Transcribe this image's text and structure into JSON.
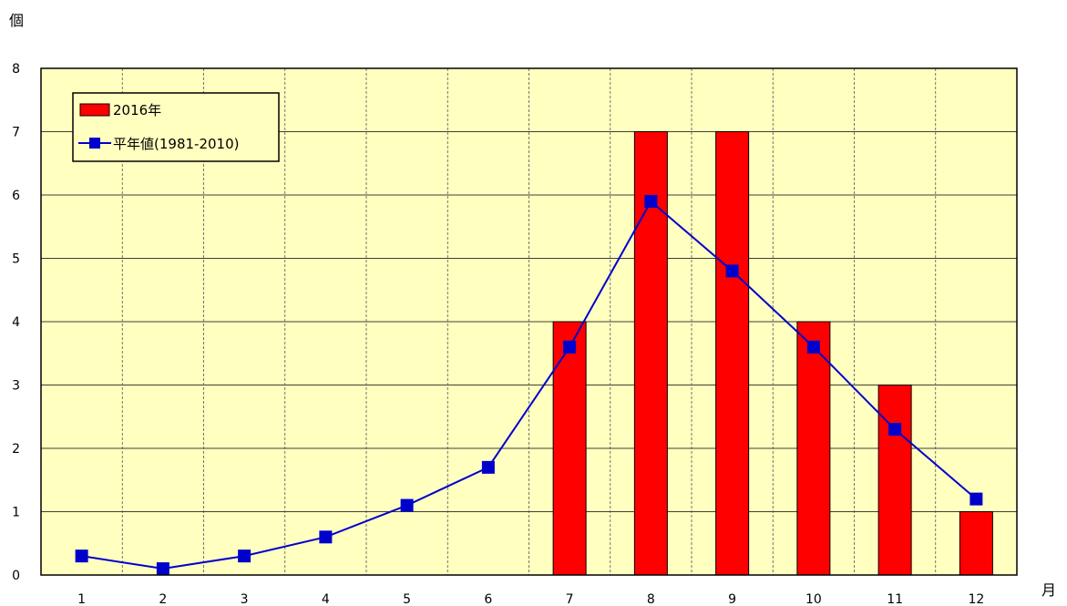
{
  "chart_data": {
    "type": "bar",
    "ylabel": "個",
    "xlabel": "月",
    "ylim": [
      0,
      8
    ],
    "yticks": [
      "0",
      "1",
      "2",
      "3",
      "4",
      "5",
      "6",
      "7",
      "8"
    ],
    "categories": [
      "1",
      "2",
      "3",
      "4",
      "5",
      "6",
      "7",
      "8",
      "9",
      "10",
      "11",
      "12"
    ],
    "grid": true,
    "legend_position": "top-left",
    "plot_background": "#ffffc0",
    "series": [
      {
        "name": "2016年",
        "type": "bar",
        "color": "#ff0000",
        "values": [
          0,
          0,
          0,
          0,
          0,
          0,
          4,
          7,
          7,
          4,
          3,
          1
        ]
      },
      {
        "name": "平年値(1981-2010)",
        "type": "line",
        "color": "#0000cc",
        "marker": "square",
        "values": [
          0.3,
          0.1,
          0.3,
          0.6,
          1.1,
          1.7,
          3.6,
          5.9,
          4.8,
          3.6,
          2.3,
          1.2
        ]
      }
    ]
  }
}
